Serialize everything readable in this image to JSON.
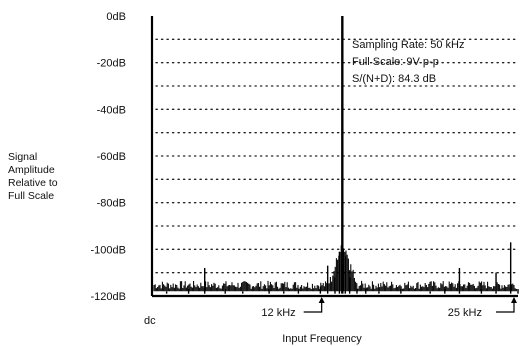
{
  "chart_data": {
    "type": "line",
    "title": "",
    "xlabel": "Input Frequency",
    "ylabel": [
      "Signal",
      "Amplitude",
      "Relative to",
      "Full Scale"
    ],
    "y_ticks": [
      "0dB",
      "-20dB",
      "-40dB",
      "-60dB",
      "-80dB",
      "-100dB",
      "-120dB"
    ],
    "y_tick_values": [
      0,
      -20,
      -40,
      -60,
      -80,
      -100,
      -120
    ],
    "x_tick_labels": [
      "dc",
      "12 kHz",
      "25 kHz"
    ],
    "x_tick_values": [
      0,
      12,
      25
    ],
    "xlim": [
      0,
      25
    ],
    "ylim": [
      -120,
      0
    ],
    "grid": "dotted horizontal every 10 dB",
    "annotations": [
      "Sampling Rate: 50 kHz",
      "Full Scale: 9V p-p",
      "S/(N+D): 84.3 dB"
    ],
    "series": [
      {
        "x": [
          0,
          1.0,
          2.5,
          3.6,
          5.0,
          6.2,
          8.0,
          9.0,
          10.0,
          11.5,
          12.0,
          12.5,
          12.8,
          13.0,
          13.2,
          13.5,
          14.0,
          14.6,
          15.5,
          17.0,
          19.0,
          20.0,
          21.0,
          22.5,
          23.5,
          24.5,
          25.0
        ],
        "y": [
          -106,
          -118,
          -117,
          -108,
          -117,
          -118,
          -117,
          -118,
          -117,
          -116,
          -107,
          -112,
          -101,
          0,
          -103,
          -112,
          -117,
          -117,
          -118,
          -117,
          -118,
          -117,
          -108,
          -117,
          -110,
          -97,
          -117
        ]
      }
    ]
  }
}
